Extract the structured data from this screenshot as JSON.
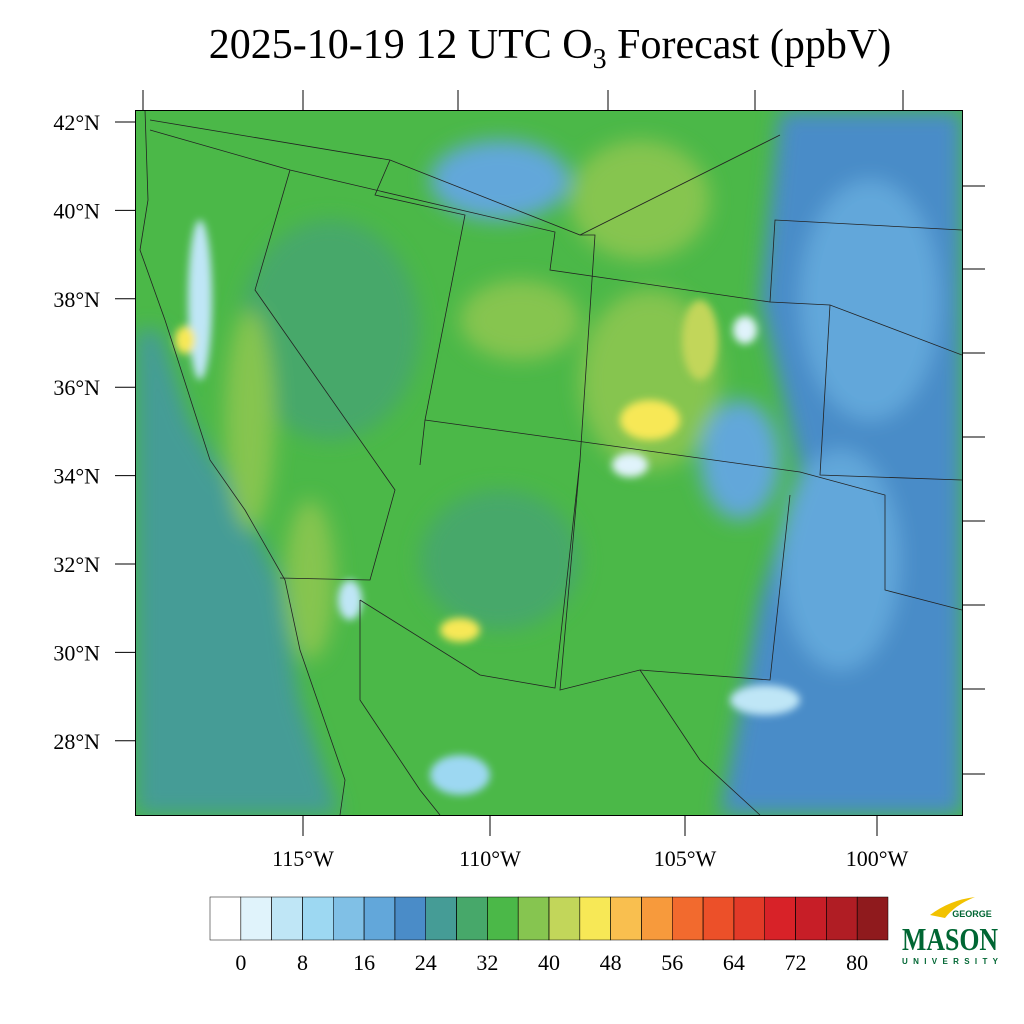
{
  "title": {
    "prefix": "2025-10-19 12 UTC O",
    "subscript": "3",
    "suffix": " Forecast (ppbV)"
  },
  "lat_labels": [
    "42°N",
    "40°N",
    "38°N",
    "36°N",
    "34°N",
    "32°N",
    "30°N",
    "28°N"
  ],
  "lon_labels": [
    "115°W",
    "110°W",
    "105°W",
    "100°W"
  ],
  "colorbar": {
    "colors": [
      "#ffffff",
      "#e0f3fb",
      "#bfe6f6",
      "#9dd8f2",
      "#80c0e6",
      "#62a7da",
      "#4a8cc8",
      "#459c96",
      "#47a86a",
      "#4bb848",
      "#86c550",
      "#c2d65a",
      "#f7e856",
      "#f9bf4f",
      "#f79a3c",
      "#f26a2e",
      "#ec5029",
      "#e23a28",
      "#d82228",
      "#c71e27",
      "#b01d24",
      "#8f1a1d"
    ],
    "levels": [
      0,
      4,
      8,
      12,
      16,
      20,
      24,
      28,
      32,
      36,
      40,
      44,
      48,
      52,
      56,
      60,
      64,
      68,
      72,
      76,
      80
    ],
    "ticks": [
      0,
      8,
      16,
      24,
      32,
      40,
      48,
      56,
      64,
      72,
      80
    ]
  },
  "logo": {
    "top": "GEORGE",
    "main": "MASON",
    "bottom": "UNIVERSITY"
  }
}
